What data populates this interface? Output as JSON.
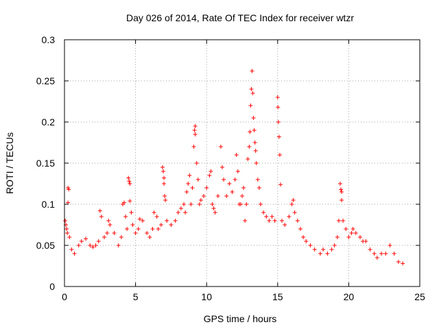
{
  "chart_data": {
    "type": "scatter",
    "title": "Day 026 of 2014, Rate Of TEC Index for receiver wtzr",
    "xlabel": "GPS time / hours",
    "ylabel": "ROTI / TECUs",
    "xlim": [
      0,
      25
    ],
    "ylim": [
      0,
      0.3
    ],
    "xticks": [
      0,
      5,
      10,
      15,
      20,
      25
    ],
    "yticks": [
      0,
      0.05,
      0.1,
      0.15,
      0.2,
      0.25,
      0.3
    ],
    "grid": true,
    "marker": "+",
    "series": [
      {
        "name": "ROTI",
        "color": "#ff0000",
        "points": [
          [
            0.05,
            0.08
          ],
          [
            0.1,
            0.075
          ],
          [
            0.15,
            0.07
          ],
          [
            0.2,
            0.065
          ],
          [
            0.25,
            0.12
          ],
          [
            0.25,
            0.102
          ],
          [
            0.3,
            0.118
          ],
          [
            0.35,
            0.06
          ],
          [
            0.5,
            0.045
          ],
          [
            0.7,
            0.04
          ],
          [
            1.0,
            0.05
          ],
          [
            1.2,
            0.055
          ],
          [
            1.5,
            0.058
          ],
          [
            1.8,
            0.05
          ],
          [
            2.0,
            0.048
          ],
          [
            2.2,
            0.05
          ],
          [
            2.4,
            0.055
          ],
          [
            2.5,
            0.092
          ],
          [
            2.6,
            0.085
          ],
          [
            2.8,
            0.06
          ],
          [
            3.0,
            0.065
          ],
          [
            3.1,
            0.08
          ],
          [
            3.2,
            0.075
          ],
          [
            3.5,
            0.065
          ],
          [
            3.8,
            0.05
          ],
          [
            4.0,
            0.06
          ],
          [
            4.1,
            0.1
          ],
          [
            4.2,
            0.102
          ],
          [
            4.3,
            0.085
          ],
          [
            4.4,
            0.07
          ],
          [
            4.5,
            0.132
          ],
          [
            4.55,
            0.128
          ],
          [
            4.6,
            0.125
          ],
          [
            4.6,
            0.104
          ],
          [
            4.7,
            0.09
          ],
          [
            4.8,
            0.075
          ],
          [
            5.0,
            0.065
          ],
          [
            5.2,
            0.07
          ],
          [
            5.3,
            0.082
          ],
          [
            5.5,
            0.08
          ],
          [
            5.8,
            0.065
          ],
          [
            6.0,
            0.06
          ],
          [
            6.2,
            0.07
          ],
          [
            6.3,
            0.09
          ],
          [
            6.5,
            0.085
          ],
          [
            6.6,
            0.07
          ],
          [
            6.8,
            0.075
          ],
          [
            6.9,
            0.145
          ],
          [
            6.95,
            0.14
          ],
          [
            7.0,
            0.132
          ],
          [
            7.0,
            0.125
          ],
          [
            7.05,
            0.11
          ],
          [
            7.1,
            0.105
          ],
          [
            7.2,
            0.08
          ],
          [
            7.5,
            0.075
          ],
          [
            7.8,
            0.08
          ],
          [
            8.0,
            0.09
          ],
          [
            8.2,
            0.095
          ],
          [
            8.4,
            0.1
          ],
          [
            8.5,
            0.09
          ],
          [
            8.6,
            0.115
          ],
          [
            8.7,
            0.125
          ],
          [
            8.8,
            0.135
          ],
          [
            8.9,
            0.1
          ],
          [
            9.0,
            0.12
          ],
          [
            9.1,
            0.17
          ],
          [
            9.15,
            0.19
          ],
          [
            9.2,
            0.195
          ],
          [
            9.2,
            0.185
          ],
          [
            9.3,
            0.15
          ],
          [
            9.4,
            0.13
          ],
          [
            9.5,
            0.1
          ],
          [
            9.6,
            0.105
          ],
          [
            9.8,
            0.11
          ],
          [
            10.0,
            0.12
          ],
          [
            10.2,
            0.135
          ],
          [
            10.3,
            0.14
          ],
          [
            10.4,
            0.1
          ],
          [
            10.5,
            0.095
          ],
          [
            10.6,
            0.09
          ],
          [
            10.8,
            0.11
          ],
          [
            11.0,
            0.17
          ],
          [
            11.1,
            0.145
          ],
          [
            11.2,
            0.13
          ],
          [
            11.4,
            0.11
          ],
          [
            11.6,
            0.125
          ],
          [
            11.8,
            0.115
          ],
          [
            12.0,
            0.13
          ],
          [
            12.1,
            0.16
          ],
          [
            12.2,
            0.14
          ],
          [
            12.3,
            0.1
          ],
          [
            12.4,
            0.1
          ],
          [
            12.5,
            0.11
          ],
          [
            12.6,
            0.12
          ],
          [
            12.7,
            0.08
          ],
          [
            12.8,
            0.1
          ],
          [
            12.9,
            0.155
          ],
          [
            13.0,
            0.17
          ],
          [
            13.05,
            0.188
          ],
          [
            13.1,
            0.22
          ],
          [
            13.15,
            0.24
          ],
          [
            13.2,
            0.262
          ],
          [
            13.25,
            0.235
          ],
          [
            13.3,
            0.205
          ],
          [
            13.35,
            0.19
          ],
          [
            13.4,
            0.175
          ],
          [
            13.45,
            0.165
          ],
          [
            13.5,
            0.15
          ],
          [
            13.6,
            0.13
          ],
          [
            13.7,
            0.12
          ],
          [
            13.8,
            0.1
          ],
          [
            14.0,
            0.09
          ],
          [
            14.2,
            0.085
          ],
          [
            14.4,
            0.08
          ],
          [
            14.6,
            0.085
          ],
          [
            14.8,
            0.08
          ],
          [
            15.0,
            0.23
          ],
          [
            15.02,
            0.218
          ],
          [
            15.05,
            0.2
          ],
          [
            15.1,
            0.182
          ],
          [
            15.15,
            0.16
          ],
          [
            15.2,
            0.124
          ],
          [
            15.3,
            0.08
          ],
          [
            15.5,
            0.075
          ],
          [
            15.8,
            0.085
          ],
          [
            16.0,
            0.1
          ],
          [
            16.1,
            0.105
          ],
          [
            16.2,
            0.09
          ],
          [
            16.4,
            0.08
          ],
          [
            16.6,
            0.07
          ],
          [
            16.8,
            0.06
          ],
          [
            17.0,
            0.055
          ],
          [
            17.3,
            0.05
          ],
          [
            17.6,
            0.045
          ],
          [
            18.0,
            0.04
          ],
          [
            18.2,
            0.045
          ],
          [
            18.5,
            0.04
          ],
          [
            18.8,
            0.045
          ],
          [
            19.0,
            0.05
          ],
          [
            19.2,
            0.06
          ],
          [
            19.3,
            0.08
          ],
          [
            19.4,
            0.125
          ],
          [
            19.45,
            0.118
          ],
          [
            19.5,
            0.115
          ],
          [
            19.5,
            0.105
          ],
          [
            19.6,
            0.08
          ],
          [
            19.8,
            0.07
          ],
          [
            20.0,
            0.06
          ],
          [
            20.2,
            0.065
          ],
          [
            20.3,
            0.07
          ],
          [
            20.5,
            0.065
          ],
          [
            20.8,
            0.06
          ],
          [
            21.0,
            0.055
          ],
          [
            21.2,
            0.055
          ],
          [
            21.5,
            0.045
          ],
          [
            21.8,
            0.04
          ],
          [
            22.0,
            0.035
          ],
          [
            22.3,
            0.04
          ],
          [
            22.6,
            0.04
          ],
          [
            22.9,
            0.05
          ],
          [
            23.2,
            0.04
          ],
          [
            23.5,
            0.03
          ],
          [
            23.8,
            0.028
          ]
        ]
      }
    ]
  }
}
